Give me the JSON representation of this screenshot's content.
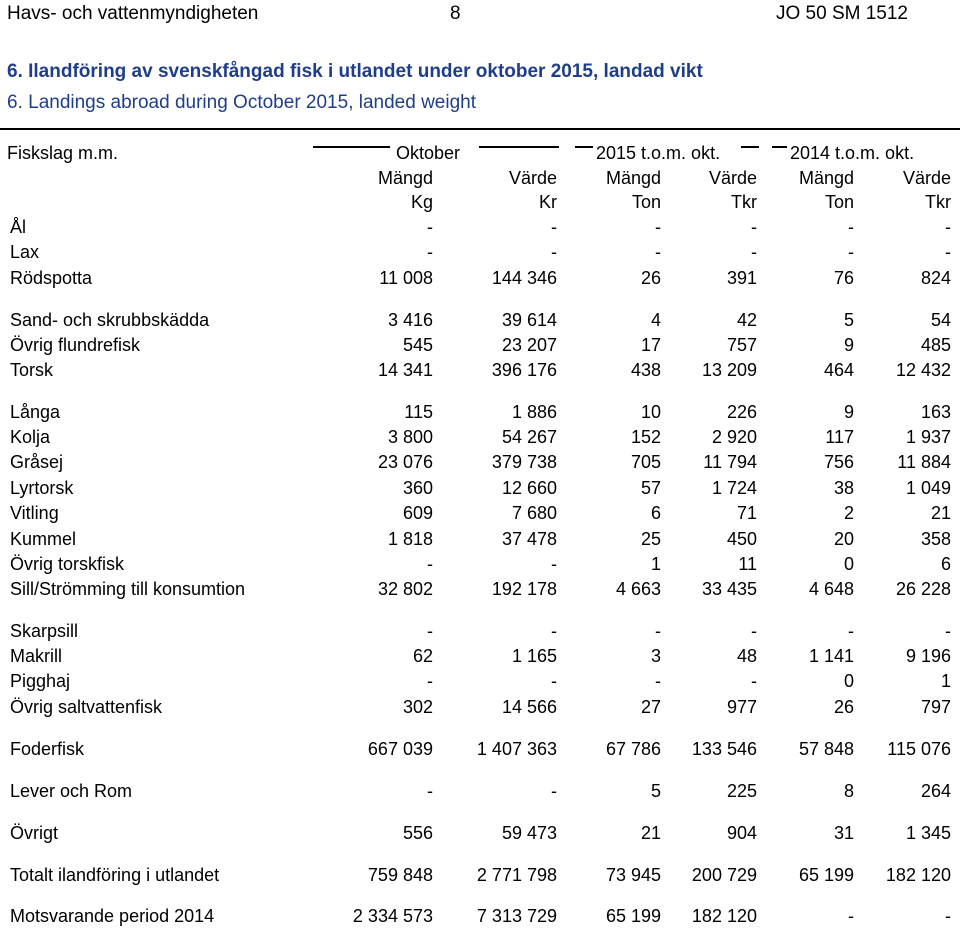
{
  "header": {
    "left": "Havs- och vattenmyndigheten",
    "page": "8",
    "right": "JO 50 SM 1512"
  },
  "title_sv": "6. Ilandföring av svenskfångad fisk i utlandet under oktober 2015, landad vikt",
  "title_en": "6. Landings abroad during October 2015, landed weight",
  "table": {
    "species_header": "Fiskslag m.m.",
    "groups": [
      "Oktober",
      "2015 t.o.m. okt.",
      "2014 t.o.m. okt."
    ],
    "columns": [
      {
        "name": "Mängd",
        "unit": "Kg"
      },
      {
        "name": "Värde",
        "unit": "Kr"
      },
      {
        "name": "Mängd",
        "unit": "Ton"
      },
      {
        "name": "Värde",
        "unit": "Tkr"
      },
      {
        "name": "Mängd",
        "unit": "Ton"
      },
      {
        "name": "Värde",
        "unit": "Tkr"
      }
    ],
    "rows": [
      {
        "label": "Ål",
        "values": [
          "-",
          "-",
          "-",
          "-",
          "-",
          "-"
        ]
      },
      {
        "label": "Lax",
        "values": [
          "-",
          "-",
          "-",
          "-",
          "-",
          "-"
        ]
      },
      {
        "label": "Rödspotta",
        "values": [
          "11 008",
          "144 346",
          "26",
          "391",
          "76",
          "824"
        ]
      },
      {
        "label": "Sand- och skrubbskädda",
        "values": [
          "3 416",
          "39 614",
          "4",
          "42",
          "5",
          "54"
        ]
      },
      {
        "label": "Övrig flundrefisk",
        "values": [
          "545",
          "23 207",
          "17",
          "757",
          "9",
          "485"
        ]
      },
      {
        "label": "Torsk",
        "values": [
          "14 341",
          "396 176",
          "438",
          "13 209",
          "464",
          "12 432"
        ]
      },
      {
        "label": "Långa",
        "values": [
          "115",
          "1 886",
          "10",
          "226",
          "9",
          "163"
        ]
      },
      {
        "label": "Kolja",
        "values": [
          "3 800",
          "54 267",
          "152",
          "2 920",
          "117",
          "1 937"
        ]
      },
      {
        "label": "Gråsej",
        "values": [
          "23 076",
          "379 738",
          "705",
          "11 794",
          "756",
          "11 884"
        ]
      },
      {
        "label": "Lyrtorsk",
        "values": [
          "360",
          "12 660",
          "57",
          "1 724",
          "38",
          "1 049"
        ]
      },
      {
        "label": "Vitling",
        "values": [
          "609",
          "7 680",
          "6",
          "71",
          "2",
          "21"
        ]
      },
      {
        "label": "Kummel",
        "values": [
          "1 818",
          "37 478",
          "25",
          "450",
          "20",
          "358"
        ]
      },
      {
        "label": "Övrig torskfisk",
        "values": [
          "-",
          "-",
          "1",
          "11",
          "0",
          "6"
        ]
      },
      {
        "label": "Sill/Strömming till konsumtion",
        "values": [
          "32 802",
          "192 178",
          "4 663",
          "33 435",
          "4 648",
          "26 228"
        ]
      },
      {
        "label": "Skarpsill",
        "values": [
          "-",
          "-",
          "-",
          "-",
          "-",
          "-"
        ]
      },
      {
        "label": "Makrill",
        "values": [
          "62",
          "1 165",
          "3",
          "48",
          "1 141",
          "9 196"
        ]
      },
      {
        "label": "Pigghaj",
        "values": [
          "-",
          "-",
          "-",
          "-",
          "0",
          "1"
        ]
      },
      {
        "label": "Övrig saltvattenfisk",
        "values": [
          "302",
          "14 566",
          "27",
          "977",
          "26",
          "797"
        ]
      },
      {
        "label": "Foderfisk",
        "values": [
          "667 039",
          "1 407 363",
          "67 786",
          "133 546",
          "57 848",
          "115 076"
        ]
      },
      {
        "label": "Lever och Rom",
        "values": [
          "-",
          "-",
          "5",
          "225",
          "8",
          "264"
        ]
      },
      {
        "label": "Övrigt",
        "values": [
          "556",
          "59 473",
          "21",
          "904",
          "31",
          "1 345"
        ]
      },
      {
        "label": "Totalt ilandföring i utlandet",
        "values": [
          "759 848",
          "2 771 798",
          "73 945",
          "200 729",
          "65 199",
          "182 120"
        ]
      },
      {
        "label": "Motsvarande period 2014",
        "values": [
          "2 334 573",
          "7 313 729",
          "65 199",
          "182 120",
          "-",
          "-"
        ]
      }
    ]
  }
}
